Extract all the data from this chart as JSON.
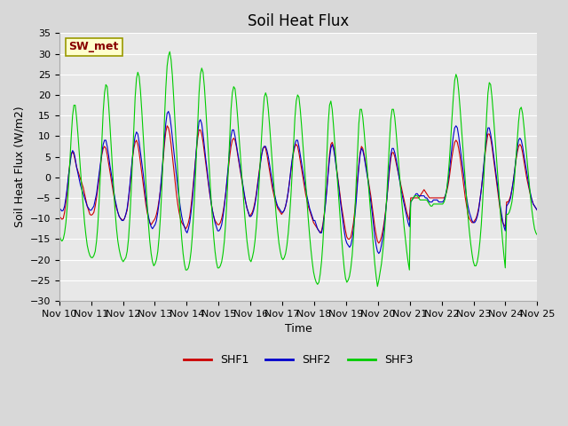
{
  "title": "Soil Heat Flux",
  "ylabel": "Soil Heat Flux (W/m2)",
  "xlabel": "Time",
  "ylim": [
    -30,
    35
  ],
  "x_tick_labels": [
    "Nov 10",
    "Nov 11",
    "Nov 12",
    "Nov 13",
    "Nov 14",
    "Nov 15",
    "Nov 16",
    "Nov 17",
    "Nov 18",
    "Nov 19",
    "Nov 20",
    "Nov 21",
    "Nov 22",
    "Nov 23",
    "Nov 24",
    "Nov 25"
  ],
  "legend_label": "SW_met",
  "legend_box_bg": "#ffffcc",
  "legend_box_border": "#999900",
  "legend_text_color": "#880000",
  "line_colors": {
    "SHF1": "#cc0000",
    "SHF2": "#0000cc",
    "SHF3": "#00cc00"
  },
  "bg_color": "#d8d8d8",
  "plot_bg": "#e8e8e8",
  "grid_color": "#ffffff",
  "title_fontsize": 12,
  "axis_label_fontsize": 9,
  "tick_label_fontsize": 8,
  "shf1": [
    -9.5,
    -9.8,
    -10.2,
    -10.0,
    -8.5,
    -6.0,
    -3.0,
    0.5,
    3.5,
    5.8,
    6.2,
    5.5,
    4.0,
    2.5,
    1.5,
    0.5,
    -0.5,
    -1.5,
    -2.5,
    -4.0,
    -5.5,
    -7.0,
    -8.0,
    -9.0,
    -9.2,
    -9.0,
    -8.5,
    -7.0,
    -5.0,
    -2.5,
    0.0,
    3.0,
    5.5,
    7.0,
    7.5,
    7.0,
    5.5,
    3.5,
    1.5,
    -0.5,
    -2.5,
    -4.5,
    -6.0,
    -7.5,
    -8.5,
    -9.5,
    -10.0,
    -10.2,
    -10.5,
    -10.0,
    -9.0,
    -8.0,
    -5.5,
    -2.5,
    1.0,
    4.5,
    7.0,
    8.5,
    9.0,
    8.0,
    6.0,
    3.5,
    1.0,
    -1.5,
    -4.0,
    -6.5,
    -8.5,
    -10.0,
    -11.0,
    -11.5,
    -11.0,
    -10.5,
    -10.0,
    -9.0,
    -7.5,
    -5.5,
    -3.0,
    0.0,
    4.0,
    8.0,
    11.0,
    12.5,
    12.0,
    10.5,
    8.0,
    5.0,
    2.0,
    -1.0,
    -4.0,
    -6.5,
    -8.5,
    -10.0,
    -11.0,
    -11.5,
    -12.0,
    -12.5,
    -12.0,
    -11.0,
    -9.5,
    -7.0,
    -4.0,
    -0.5,
    3.0,
    6.5,
    9.5,
    11.5,
    11.5,
    10.5,
    8.5,
    6.0,
    3.5,
    1.0,
    -1.5,
    -4.0,
    -6.0,
    -8.0,
    -9.5,
    -10.5,
    -11.0,
    -11.5,
    -11.5,
    -11.0,
    -10.0,
    -8.5,
    -6.5,
    -4.0,
    -1.0,
    2.0,
    5.0,
    7.5,
    9.0,
    9.5,
    9.0,
    7.5,
    5.5,
    3.5,
    1.5,
    -0.5,
    -2.5,
    -4.5,
    -6.0,
    -7.5,
    -8.5,
    -9.5,
    -9.0,
    -8.5,
    -7.5,
    -6.0,
    -4.0,
    -1.5,
    1.0,
    3.5,
    5.5,
    7.0,
    7.5,
    7.0,
    5.5,
    3.5,
    1.5,
    -0.5,
    -2.5,
    -4.0,
    -5.5,
    -6.5,
    -7.5,
    -8.0,
    -8.5,
    -9.0,
    -8.5,
    -8.0,
    -7.0,
    -5.5,
    -3.5,
    -1.0,
    1.5,
    4.0,
    6.0,
    7.5,
    8.0,
    7.5,
    6.0,
    4.0,
    2.0,
    0.0,
    -2.0,
    -4.0,
    -5.5,
    -7.0,
    -8.0,
    -9.0,
    -10.0,
    -11.0,
    -11.5,
    -12.0,
    -12.5,
    -13.0,
    -13.5,
    -13.0,
    -11.5,
    -9.0,
    -6.0,
    -2.5,
    1.5,
    5.5,
    8.0,
    8.5,
    7.5,
    5.5,
    3.0,
    0.5,
    -2.0,
    -4.5,
    -7.0,
    -9.0,
    -11.0,
    -13.0,
    -14.5,
    -15.0,
    -15.0,
    -14.5,
    -13.0,
    -11.0,
    -8.0,
    -4.5,
    -0.5,
    3.0,
    6.0,
    7.5,
    7.0,
    5.5,
    3.5,
    1.5,
    -0.5,
    -2.5,
    -4.5,
    -7.0,
    -9.5,
    -12.0,
    -14.0,
    -15.5,
    -16.0,
    -15.5,
    -14.5,
    -13.0,
    -11.0,
    -8.5,
    -5.5,
    -2.0,
    1.5,
    4.5,
    6.0,
    6.0,
    5.0,
    3.5,
    2.0,
    0.5,
    -1.0,
    -2.5,
    -4.0,
    -5.5,
    -7.0,
    -8.5,
    -9.5,
    -10.5,
    -5.0,
    -5.0,
    -5.0,
    -5.0,
    -5.0,
    -5.0,
    -5.0,
    -4.5,
    -4.0,
    -3.5,
    -3.0,
    -3.5,
    -4.0,
    -4.5,
    -5.0,
    -5.0,
    -5.0,
    -5.0,
    -5.0,
    -5.0,
    -5.0,
    -5.0,
    -5.0,
    -5.0,
    -5.0,
    -5.0,
    -4.5,
    -3.5,
    -2.0,
    0.0,
    2.5,
    5.0,
    7.0,
    8.5,
    9.0,
    8.5,
    7.0,
    5.0,
    2.5,
    0.0,
    -2.5,
    -5.0,
    -7.0,
    -9.0,
    -10.0,
    -10.5,
    -11.0,
    -11.0,
    -10.5,
    -10.0,
    -9.0,
    -7.5,
    -5.5,
    -3.0,
    0.0,
    3.0,
    6.0,
    8.5,
    10.5,
    10.5,
    9.5,
    7.5,
    5.0,
    2.5,
    0.0,
    -2.5,
    -5.0,
    -7.5,
    -9.5,
    -11.0,
    -11.5,
    -12.0,
    -6.0,
    -6.0,
    -5.5,
    -4.5,
    -3.0,
    -1.0,
    1.5,
    4.0,
    6.0,
    7.5,
    8.0,
    7.5,
    6.0,
    4.0,
    2.0,
    0.0,
    -1.5,
    -3.0,
    -4.5,
    -5.5,
    -6.5,
    -7.0,
    -7.5,
    -8.0
  ],
  "shf2": [
    -7.5,
    -7.8,
    -8.2,
    -8.0,
    -7.0,
    -5.0,
    -2.5,
    0.5,
    3.0,
    5.5,
    6.5,
    6.0,
    4.5,
    2.5,
    1.0,
    -0.5,
    -2.0,
    -3.0,
    -4.0,
    -5.0,
    -6.0,
    -7.0,
    -7.5,
    -8.0,
    -8.0,
    -7.5,
    -7.0,
    -5.5,
    -4.0,
    -1.5,
    1.0,
    3.5,
    6.0,
    8.0,
    9.0,
    9.0,
    7.5,
    5.5,
    3.0,
    1.0,
    -1.0,
    -3.5,
    -5.5,
    -7.0,
    -8.5,
    -9.5,
    -10.0,
    -10.5,
    -10.5,
    -10.0,
    -9.0,
    -7.5,
    -5.0,
    -2.0,
    1.5,
    5.0,
    8.0,
    10.0,
    11.0,
    10.5,
    8.5,
    6.0,
    3.5,
    1.0,
    -2.0,
    -5.0,
    -7.5,
    -9.5,
    -11.0,
    -12.0,
    -12.5,
    -12.0,
    -11.5,
    -10.5,
    -8.5,
    -6.0,
    -3.0,
    1.0,
    5.0,
    9.5,
    13.0,
    15.5,
    16.0,
    15.0,
    12.5,
    9.5,
    6.5,
    3.5,
    0.5,
    -2.5,
    -5.0,
    -7.5,
    -9.5,
    -11.0,
    -12.0,
    -13.0,
    -13.5,
    -12.5,
    -11.0,
    -8.5,
    -5.5,
    -1.5,
    2.5,
    7.0,
    11.0,
    13.5,
    14.0,
    13.0,
    10.5,
    7.5,
    4.5,
    2.0,
    -1.0,
    -3.5,
    -6.0,
    -8.0,
    -9.5,
    -11.0,
    -12.0,
    -13.0,
    -13.0,
    -12.5,
    -11.5,
    -9.5,
    -7.0,
    -4.0,
    -0.5,
    3.0,
    7.0,
    10.0,
    11.5,
    11.5,
    10.0,
    8.0,
    6.0,
    4.0,
    2.0,
    0.0,
    -2.0,
    -4.0,
    -6.0,
    -7.5,
    -8.5,
    -9.5,
    -9.5,
    -9.0,
    -8.0,
    -6.5,
    -4.5,
    -2.0,
    0.5,
    3.0,
    5.5,
    7.0,
    7.5,
    7.5,
    6.5,
    5.0,
    3.0,
    1.0,
    -1.0,
    -3.0,
    -4.5,
    -6.0,
    -7.0,
    -7.5,
    -8.0,
    -8.5,
    -8.5,
    -8.0,
    -7.0,
    -5.5,
    -3.5,
    -1.0,
    2.0,
    4.5,
    6.5,
    8.0,
    9.0,
    9.0,
    7.5,
    5.5,
    3.5,
    1.5,
    -0.5,
    -2.5,
    -4.5,
    -6.0,
    -7.5,
    -8.5,
    -9.5,
    -10.5,
    -10.5,
    -11.5,
    -12.5,
    -13.0,
    -13.5,
    -13.5,
    -12.0,
    -9.5,
    -6.5,
    -3.0,
    1.0,
    4.5,
    7.0,
    8.0,
    7.0,
    5.0,
    2.5,
    0.0,
    -2.5,
    -5.5,
    -8.0,
    -10.5,
    -13.0,
    -15.0,
    -16.0,
    -16.5,
    -17.0,
    -16.5,
    -15.0,
    -12.5,
    -9.5,
    -6.0,
    -1.5,
    2.5,
    5.5,
    7.0,
    6.5,
    5.0,
    3.0,
    1.0,
    -1.0,
    -3.5,
    -6.0,
    -8.5,
    -11.5,
    -14.5,
    -16.5,
    -18.0,
    -18.5,
    -18.0,
    -16.5,
    -14.5,
    -12.0,
    -9.0,
    -5.5,
    -1.5,
    2.5,
    5.5,
    7.0,
    7.0,
    6.0,
    4.5,
    2.5,
    0.5,
    -1.5,
    -3.5,
    -5.0,
    -6.5,
    -8.0,
    -9.5,
    -11.0,
    -12.0,
    -6.0,
    -5.5,
    -5.0,
    -4.5,
    -4.0,
    -4.0,
    -4.5,
    -4.5,
    -4.5,
    -4.5,
    -4.5,
    -5.0,
    -5.0,
    -5.5,
    -6.0,
    -6.0,
    -6.0,
    -5.5,
    -5.5,
    -5.5,
    -5.5,
    -6.0,
    -6.0,
    -6.0,
    -6.0,
    -5.5,
    -4.5,
    -3.0,
    -1.0,
    1.5,
    4.5,
    7.5,
    10.0,
    12.0,
    12.5,
    12.0,
    10.0,
    7.5,
    5.0,
    2.5,
    0.0,
    -2.5,
    -5.0,
    -7.0,
    -8.5,
    -9.5,
    -10.5,
    -11.0,
    -11.0,
    -10.5,
    -9.5,
    -8.0,
    -5.5,
    -3.0,
    0.0,
    3.5,
    7.0,
    10.0,
    12.0,
    12.0,
    10.5,
    8.5,
    6.0,
    3.5,
    1.0,
    -1.5,
    -4.0,
    -6.5,
    -8.5,
    -10.5,
    -12.0,
    -13.0,
    -7.0,
    -6.5,
    -6.0,
    -5.0,
    -3.0,
    -1.0,
    1.5,
    4.5,
    7.0,
    9.0,
    9.5,
    9.0,
    7.5,
    5.5,
    3.5,
    1.5,
    -0.5,
    -2.5,
    -4.0,
    -5.5,
    -6.5,
    -7.0,
    -7.5,
    -8.0
  ],
  "shf3": [
    -14.0,
    -15.0,
    -15.5,
    -15.0,
    -13.5,
    -11.0,
    -7.0,
    -2.0,
    4.0,
    10.0,
    15.0,
    17.5,
    17.5,
    14.5,
    10.5,
    6.0,
    1.5,
    -3.0,
    -7.0,
    -11.0,
    -14.0,
    -16.5,
    -18.0,
    -19.0,
    -19.5,
    -19.5,
    -19.0,
    -18.0,
    -15.5,
    -11.5,
    -5.5,
    1.5,
    9.0,
    16.0,
    20.5,
    22.5,
    22.0,
    18.0,
    13.0,
    7.5,
    2.0,
    -3.5,
    -8.5,
    -12.5,
    -15.5,
    -17.5,
    -19.0,
    -20.0,
    -20.5,
    -20.0,
    -19.5,
    -18.0,
    -15.0,
    -10.0,
    -3.5,
    4.0,
    12.0,
    19.5,
    24.0,
    25.5,
    24.5,
    21.0,
    16.0,
    10.5,
    5.0,
    -1.0,
    -6.5,
    -11.5,
    -15.5,
    -18.5,
    -20.5,
    -21.5,
    -21.0,
    -20.0,
    -18.0,
    -14.5,
    -9.5,
    -3.0,
    5.0,
    14.0,
    21.5,
    27.0,
    29.5,
    30.5,
    28.5,
    24.5,
    19.0,
    13.0,
    7.0,
    1.0,
    -5.0,
    -10.5,
    -15.0,
    -18.5,
    -21.0,
    -22.5,
    -22.5,
    -22.0,
    -20.5,
    -18.0,
    -14.0,
    -8.5,
    -2.0,
    5.5,
    13.5,
    20.5,
    25.0,
    26.5,
    25.5,
    22.0,
    17.0,
    11.5,
    6.0,
    0.5,
    -5.0,
    -10.0,
    -14.5,
    -18.0,
    -20.5,
    -22.0,
    -22.0,
    -21.5,
    -20.5,
    -18.5,
    -15.5,
    -11.0,
    -5.0,
    2.0,
    9.5,
    16.5,
    20.5,
    22.0,
    21.5,
    18.5,
    14.5,
    10.0,
    5.5,
    1.0,
    -3.5,
    -8.0,
    -12.0,
    -15.5,
    -18.0,
    -20.0,
    -20.5,
    -19.5,
    -18.0,
    -15.5,
    -12.0,
    -7.5,
    -2.0,
    4.0,
    10.0,
    15.5,
    19.5,
    20.5,
    19.5,
    16.5,
    12.5,
    8.0,
    3.5,
    -1.0,
    -5.5,
    -9.5,
    -13.0,
    -16.0,
    -18.0,
    -19.5,
    -20.0,
    -19.5,
    -18.5,
    -16.5,
    -13.5,
    -9.5,
    -4.5,
    1.5,
    8.0,
    14.5,
    18.5,
    20.0,
    19.5,
    16.5,
    12.5,
    8.0,
    3.5,
    -1.0,
    -5.5,
    -10.0,
    -14.0,
    -17.5,
    -20.5,
    -23.0,
    -24.5,
    -25.5,
    -26.0,
    -25.5,
    -23.5,
    -20.5,
    -16.0,
    -10.0,
    -2.5,
    5.5,
    13.0,
    17.5,
    18.5,
    16.5,
    12.5,
    8.0,
    3.5,
    -1.0,
    -5.5,
    -10.0,
    -14.5,
    -18.5,
    -22.0,
    -24.5,
    -25.5,
    -25.0,
    -24.0,
    -22.0,
    -19.0,
    -14.5,
    -8.5,
    -1.5,
    6.0,
    13.0,
    16.5,
    16.5,
    14.5,
    11.0,
    7.0,
    3.0,
    -1.0,
    -5.0,
    -9.0,
    -13.0,
    -17.0,
    -21.0,
    -24.0,
    -26.5,
    -25.0,
    -23.0,
    -21.0,
    -18.0,
    -14.5,
    -10.0,
    -4.5,
    2.0,
    8.5,
    14.0,
    16.5,
    16.5,
    14.5,
    11.0,
    7.0,
    3.0,
    -1.0,
    -5.0,
    -8.5,
    -12.0,
    -15.0,
    -18.0,
    -20.5,
    -22.5,
    -6.0,
    -5.5,
    -5.0,
    -4.5,
    -4.5,
    -4.5,
    -5.0,
    -5.5,
    -5.5,
    -5.5,
    -5.5,
    -5.5,
    -5.5,
    -6.0,
    -6.5,
    -7.0,
    -7.0,
    -6.5,
    -6.5,
    -6.5,
    -6.5,
    -6.5,
    -6.5,
    -6.5,
    -6.5,
    -6.0,
    -5.0,
    -3.0,
    0.0,
    4.0,
    9.0,
    14.5,
    19.5,
    23.5,
    25.0,
    24.0,
    21.0,
    17.0,
    12.5,
    8.0,
    3.5,
    -1.0,
    -5.5,
    -9.5,
    -13.0,
    -16.0,
    -18.5,
    -20.5,
    -21.5,
    -21.5,
    -20.5,
    -18.5,
    -15.5,
    -11.5,
    -6.0,
    0.5,
    8.0,
    15.0,
    20.5,
    23.0,
    22.5,
    19.5,
    15.5,
    11.0,
    6.5,
    2.0,
    -2.5,
    -7.0,
    -11.5,
    -15.5,
    -19.0,
    -22.0,
    -9.0,
    -9.0,
    -8.5,
    -7.5,
    -6.0,
    -3.5,
    0.0,
    4.5,
    9.0,
    13.5,
    16.5,
    17.0,
    15.5,
    12.5,
    9.0,
    5.5,
    2.0,
    -1.5,
    -5.0,
    -8.0,
    -10.5,
    -12.5,
    -13.5,
    -14.0
  ]
}
